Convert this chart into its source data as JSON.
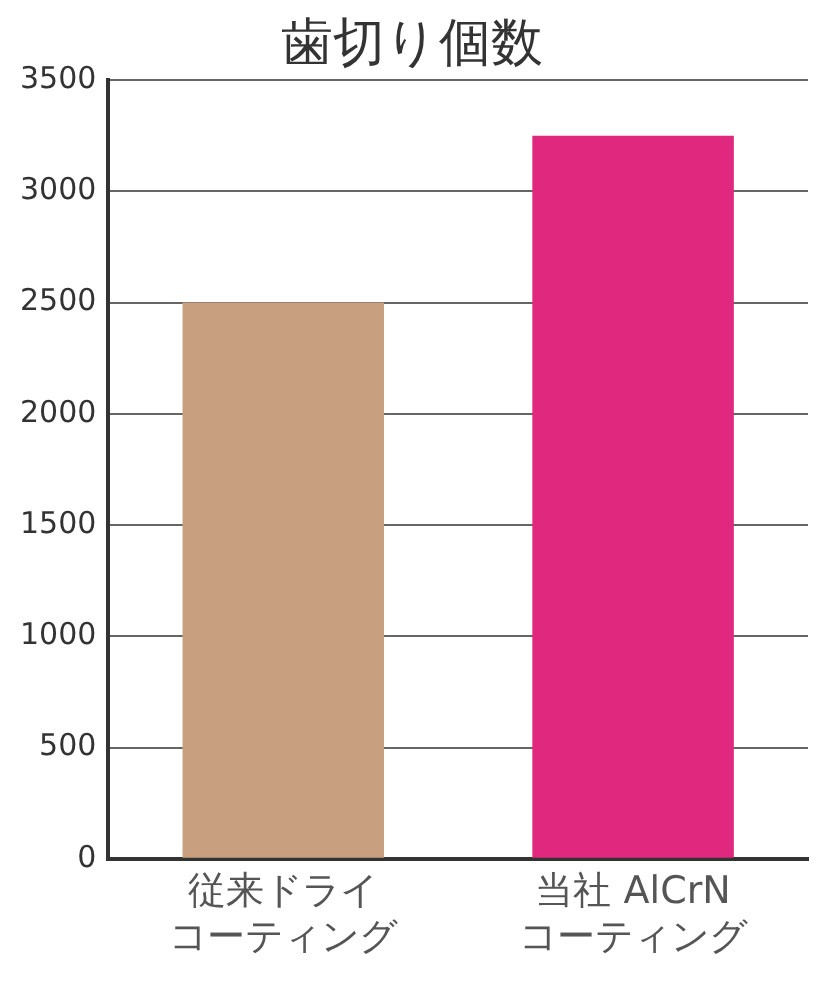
{
  "chart_data": {
    "type": "bar",
    "title": "歯切り個数",
    "categories": [
      "従来ドライコーティング",
      "当社 AlCrNコーティング"
    ],
    "values": [
      2500,
      3250
    ],
    "colors": [
      "#c9a07f",
      "#e0287f"
    ],
    "ylim": [
      0,
      3500
    ],
    "yticks": [
      0,
      500,
      1000,
      1500,
      2000,
      2500,
      3000,
      3500
    ],
    "grid": "y"
  }
}
